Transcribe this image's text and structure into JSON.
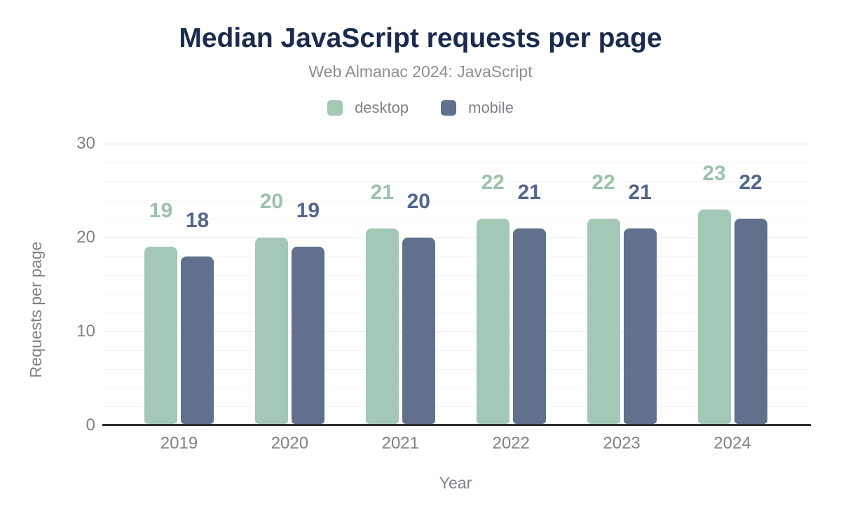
{
  "chart_data": {
    "type": "bar",
    "title": "Median JavaScript requests per page",
    "subtitle": "Web Almanac 2024: JavaScript",
    "categories": [
      "2019",
      "2020",
      "2021",
      "2022",
      "2023",
      "2024"
    ],
    "series": [
      {
        "name": "desktop",
        "color": "#a4c8b6",
        "label_color": "#9cc2ab",
        "values": [
          19,
          20,
          21,
          22,
          22,
          23
        ]
      },
      {
        "name": "mobile",
        "color": "#60708d",
        "label_color": "#54668a",
        "values": [
          18,
          19,
          20,
          21,
          21,
          22
        ]
      }
    ],
    "xlabel": "Year",
    "ylabel": "Requests per page",
    "ylim": [
      0,
      30
    ],
    "yticks": [
      0,
      10,
      20,
      30
    ],
    "minor_grid_step": 2,
    "grid": true,
    "legend_position": "top",
    "bar_value_labels": true
  },
  "theme": {
    "background": "#ffffff",
    "title_color": "#1b2b4e",
    "subtitle_color": "#8b8e94",
    "axis_text_color": "#7f8287",
    "axis_line_color": "#2e2e2e",
    "grid_major_color": "#e4e4e4",
    "grid_minor_color": "#f1f1f1"
  }
}
